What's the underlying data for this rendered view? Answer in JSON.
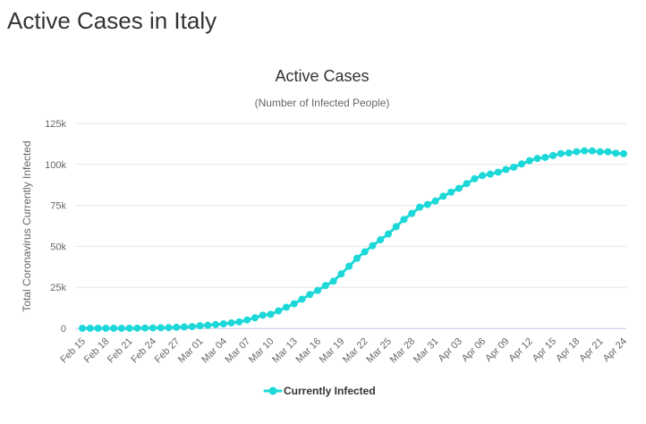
{
  "page": {
    "title": "Active Cases in Italy"
  },
  "chart_data": {
    "type": "line",
    "title": "Active Cases",
    "subtitle": "(Number of Infected People)",
    "xlabel": "",
    "ylabel": "Total Coronavirus Currently Infected",
    "ylim": [
      0,
      125000
    ],
    "yticks": [
      0,
      25000,
      50000,
      75000,
      100000,
      125000
    ],
    "ytick_labels": [
      "0",
      "25k",
      "50k",
      "75k",
      "100k",
      "125k"
    ],
    "xtick_labels": [
      "Feb 15",
      "Feb 18",
      "Feb 21",
      "Feb 24",
      "Feb 27",
      "Mar 01",
      "Mar 04",
      "Mar 07",
      "Mar 10",
      "Mar 13",
      "Mar 16",
      "Mar 19",
      "Mar 22",
      "Mar 25",
      "Mar 28",
      "Mar 31",
      "Apr 03",
      "Apr 06",
      "Apr 09",
      "Apr 12",
      "Apr 15",
      "Apr 18",
      "Apr 21",
      "Apr 24"
    ],
    "xtick_every": 3,
    "color": "#1dd8d8",
    "legend": "bottom-center",
    "series": [
      {
        "name": "Currently Infected",
        "values": [
          3,
          3,
          3,
          3,
          3,
          3,
          20,
          79,
          150,
          227,
          311,
          385,
          588,
          821,
          1049,
          1577,
          1835,
          2263,
          2706,
          3296,
          3916,
          5061,
          6387,
          7985,
          8514,
          10590,
          12839,
          14955,
          17750,
          20603,
          23073,
          26062,
          28710,
          33190,
          37860,
          42681,
          46638,
          50418,
          54030,
          57521,
          62013,
          66414,
          70065,
          73880,
          75528,
          77635,
          80572,
          83049,
          85388,
          88274,
          91246,
          93187,
          94067,
          95262,
          96877,
          98273,
          100269,
          102253,
          103616,
          104291,
          105418,
          106607,
          106962,
          107771,
          108257,
          108237,
          107709,
          107699,
          106848,
          106527
        ]
      }
    ]
  }
}
